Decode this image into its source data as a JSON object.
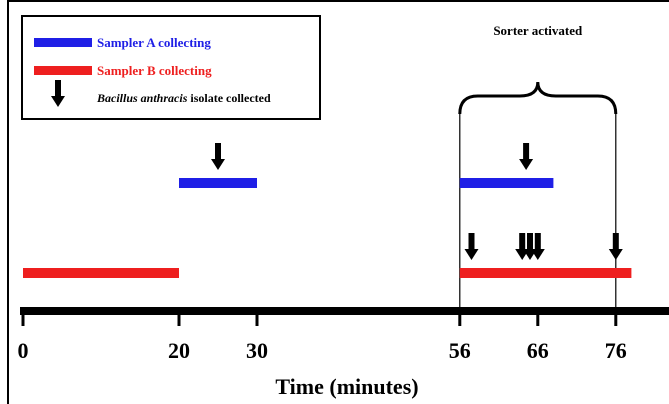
{
  "chart_data": {
    "type": "timeline",
    "title": "",
    "xlabel": "Time (minutes)",
    "ylabel": "",
    "xlim": [
      0,
      84
    ],
    "ticks": [
      0,
      20,
      30,
      56,
      66,
      76
    ],
    "tick_labels": [
      "0",
      "20",
      "30",
      "56",
      "66",
      "76"
    ],
    "legend": {
      "placement": "top-left",
      "entries": [
        {
          "label": "Sampler A collecting",
          "color": "#1f1fe6",
          "marker": "bar"
        },
        {
          "label": "Sampler B collecting",
          "color": "#ee1f1f",
          "marker": "bar"
        },
        {
          "label_italic": "Bacillus anthracis",
          "label_rest": " isolate collected",
          "color": "#000000",
          "marker": "arrow"
        }
      ]
    },
    "series": [
      {
        "name": "Sampler A collecting",
        "color": "#1f1fe6",
        "intervals": [
          [
            20,
            30
          ],
          [
            56,
            68
          ]
        ]
      },
      {
        "name": "Sampler B collecting",
        "color": "#ee1f1f",
        "intervals": [
          [
            0,
            20
          ],
          [
            56,
            78
          ]
        ]
      }
    ],
    "isolates": [
      {
        "sampler": "Sampler A collecting",
        "time": 25
      },
      {
        "sampler": "Sampler A collecting",
        "time": 64.5
      },
      {
        "sampler": "Sampler B collecting",
        "time": 57.5
      },
      {
        "sampler": "Sampler B collecting",
        "time": 64
      },
      {
        "sampler": "Sampler B collecting",
        "time": 65
      },
      {
        "sampler": "Sampler B collecting",
        "time": 66
      },
      {
        "sampler": "Sampler B collecting",
        "time": 76
      }
    ],
    "annotations": [
      {
        "text": "Sorter activated",
        "from": 56,
        "to": 76,
        "style": "curly-brace"
      }
    ]
  }
}
